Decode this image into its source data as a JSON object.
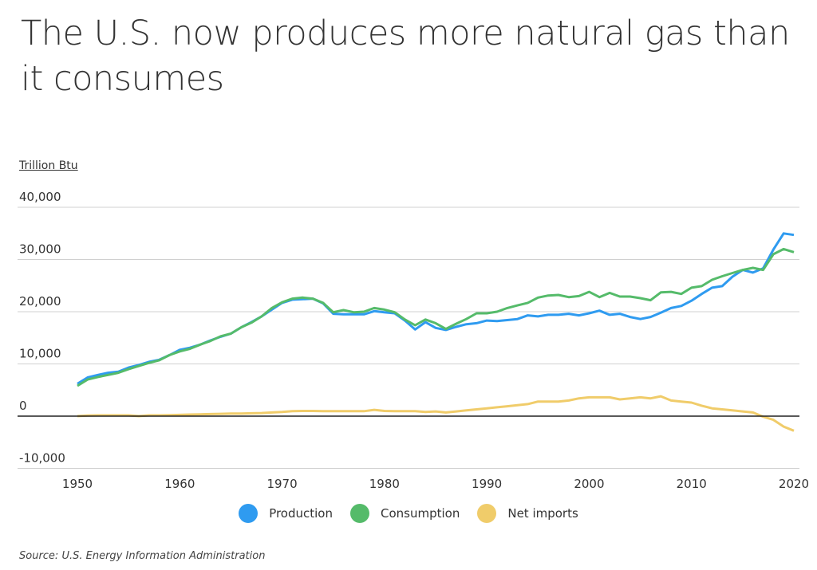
{
  "title": "The U.S. now produces more natural gas than it consumes",
  "source": "Source:  U.S. Energy Information Administration",
  "chart_data": {
    "type": "line",
    "title": "The U.S. now produces more natural gas than it consumes",
    "ylabel": "Trillion Btu",
    "xlabel": "",
    "ylim": [
      -10000,
      40000
    ],
    "xlim": [
      1950,
      2020
    ],
    "yticks": [
      40000,
      30000,
      20000,
      10000,
      0,
      -10000
    ],
    "ytick_labels": [
      "40,000",
      "30,000",
      "20,000",
      "10,000",
      "0",
      "-10,000"
    ],
    "xticks": [
      1950,
      1960,
      1970,
      1980,
      1990,
      2000,
      2010,
      2020
    ],
    "xtick_labels": [
      "1950",
      "1960",
      "1970",
      "1980",
      "1990",
      "2000",
      "2010",
      "2020"
    ],
    "grid": true,
    "legend": "bottom",
    "x_start": 1950,
    "series": [
      {
        "name": "Production",
        "color": "#2f9bf0",
        "values": [
          6200,
          7400,
          7900,
          8300,
          8500,
          9300,
          9800,
          10400,
          10800,
          11700,
          12700,
          13100,
          13700,
          14500,
          15200,
          15800,
          17000,
          18000,
          19100,
          20400,
          21700,
          22300,
          22400,
          22500,
          21600,
          19600,
          19500,
          19500,
          19500,
          20100,
          19900,
          19700,
          18300,
          16600,
          18000,
          16900,
          16500,
          17100,
          17600,
          17800,
          18300,
          18200,
          18400,
          18600,
          19300,
          19100,
          19400,
          19400,
          19600,
          19300,
          19700,
          20200,
          19400,
          19600,
          19000,
          18600,
          19000,
          19800,
          20700,
          21100,
          22100,
          23400,
          24600,
          24900,
          26700,
          28000,
          27500,
          28300,
          31900,
          35000,
          34700
        ]
      },
      {
        "name": "Consumption",
        "color": "#55bb6a",
        "values": [
          5800,
          7000,
          7500,
          7900,
          8300,
          9000,
          9600,
          10200,
          10700,
          11700,
          12400,
          12900,
          13700,
          14400,
          15300,
          15800,
          17000,
          17900,
          19100,
          20700,
          21800,
          22500,
          22700,
          22500,
          21700,
          19900,
          20300,
          19900,
          20000,
          20700,
          20400,
          19900,
          18500,
          17400,
          18500,
          17800,
          16700,
          17700,
          18600,
          19700,
          19700,
          20000,
          20700,
          21200,
          21700,
          22700,
          23100,
          23200,
          22800,
          23000,
          23800,
          22800,
          23600,
          22900,
          22900,
          22600,
          22200,
          23700,
          23800,
          23400,
          24600,
          24900,
          26100,
          26800,
          27400,
          28000,
          28400,
          28000,
          31000,
          32000,
          31400
        ]
      },
      {
        "name": "Net imports",
        "color": "#f0cc6a",
        "values": [
          0,
          100,
          150,
          150,
          150,
          150,
          0,
          150,
          150,
          200,
          250,
          300,
          350,
          400,
          450,
          500,
          500,
          550,
          600,
          700,
          800,
          950,
          1000,
          1000,
          950,
          950,
          950,
          950,
          950,
          1200,
          1000,
          950,
          950,
          950,
          800,
          900,
          700,
          900,
          1100,
          1300,
          1500,
          1700,
          1900,
          2100,
          2300,
          2800,
          2800,
          2800,
          3000,
          3400,
          3600,
          3600,
          3600,
          3200,
          3400,
          3600,
          3400,
          3800,
          3000,
          2800,
          2600,
          2000,
          1500,
          1300,
          1100,
          900,
          700,
          -100,
          -700,
          -2000,
          -2800
        ]
      }
    ]
  }
}
